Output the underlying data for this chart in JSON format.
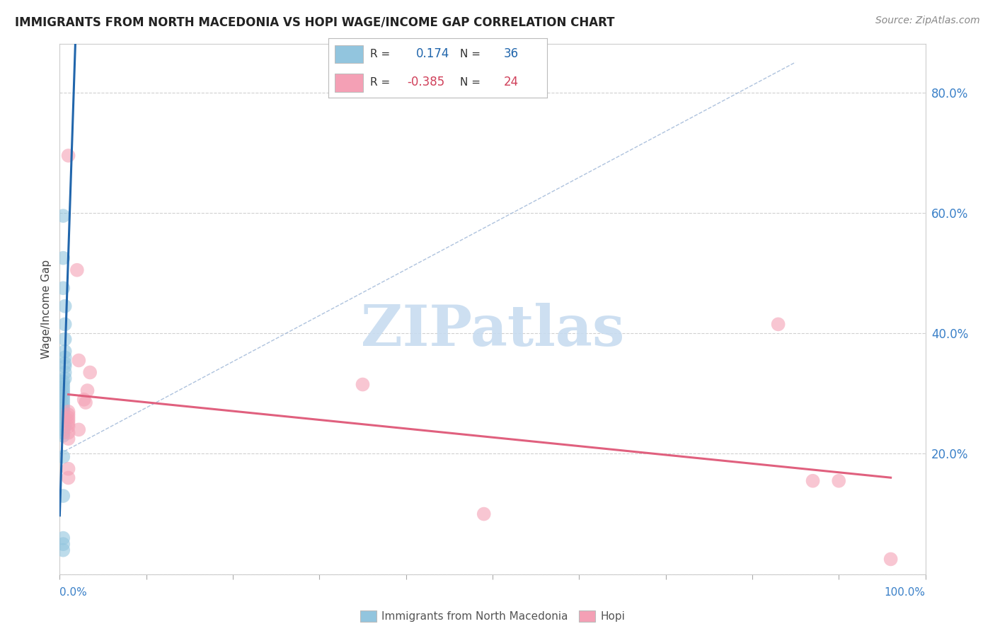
{
  "title": "IMMIGRANTS FROM NORTH MACEDONIA VS HOPI WAGE/INCOME GAP CORRELATION CHART",
  "source": "Source: ZipAtlas.com",
  "ylabel": "Wage/Income Gap",
  "xlim": [
    0.0,
    1.0
  ],
  "ylim": [
    0.0,
    0.88
  ],
  "ytick_positions": [
    0.0,
    0.2,
    0.4,
    0.6,
    0.8
  ],
  "ytick_labels": [
    "",
    "20.0%",
    "40.0%",
    "60.0%",
    "80.0%"
  ],
  "xtick_positions": [
    0.0,
    0.1,
    0.2,
    0.3,
    0.4,
    0.5,
    0.6,
    0.7,
    0.8,
    0.9,
    1.0
  ],
  "blue_R": 0.174,
  "blue_N": 36,
  "pink_R": -0.385,
  "pink_N": 24,
  "blue_color": "#92c5de",
  "pink_color": "#f4a0b5",
  "blue_line_color": "#2166ac",
  "pink_line_color": "#e0607e",
  "blue_scatter": [
    [
      0.004,
      0.595
    ],
    [
      0.004,
      0.525
    ],
    [
      0.004,
      0.475
    ],
    [
      0.006,
      0.445
    ],
    [
      0.006,
      0.415
    ],
    [
      0.006,
      0.39
    ],
    [
      0.006,
      0.37
    ],
    [
      0.006,
      0.36
    ],
    [
      0.006,
      0.35
    ],
    [
      0.006,
      0.345
    ],
    [
      0.006,
      0.335
    ],
    [
      0.006,
      0.325
    ],
    [
      0.004,
      0.32
    ],
    [
      0.004,
      0.315
    ],
    [
      0.004,
      0.31
    ],
    [
      0.004,
      0.305
    ],
    [
      0.004,
      0.3
    ],
    [
      0.004,
      0.295
    ],
    [
      0.004,
      0.29
    ],
    [
      0.004,
      0.285
    ],
    [
      0.004,
      0.28
    ],
    [
      0.004,
      0.275
    ],
    [
      0.004,
      0.27
    ],
    [
      0.004,
      0.265
    ],
    [
      0.004,
      0.26
    ],
    [
      0.004,
      0.255
    ],
    [
      0.004,
      0.25
    ],
    [
      0.006,
      0.245
    ],
    [
      0.004,
      0.24
    ],
    [
      0.004,
      0.235
    ],
    [
      0.004,
      0.23
    ],
    [
      0.004,
      0.195
    ],
    [
      0.004,
      0.13
    ],
    [
      0.004,
      0.06
    ],
    [
      0.004,
      0.05
    ],
    [
      0.004,
      0.04
    ]
  ],
  "pink_scatter": [
    [
      0.01,
      0.695
    ],
    [
      0.02,
      0.505
    ],
    [
      0.022,
      0.355
    ],
    [
      0.035,
      0.335
    ],
    [
      0.032,
      0.305
    ],
    [
      0.028,
      0.29
    ],
    [
      0.03,
      0.285
    ],
    [
      0.01,
      0.27
    ],
    [
      0.01,
      0.265
    ],
    [
      0.01,
      0.26
    ],
    [
      0.01,
      0.255
    ],
    [
      0.01,
      0.25
    ],
    [
      0.01,
      0.245
    ],
    [
      0.022,
      0.24
    ],
    [
      0.01,
      0.235
    ],
    [
      0.01,
      0.225
    ],
    [
      0.01,
      0.175
    ],
    [
      0.01,
      0.16
    ],
    [
      0.35,
      0.315
    ],
    [
      0.49,
      0.1
    ],
    [
      0.83,
      0.415
    ],
    [
      0.87,
      0.155
    ],
    [
      0.9,
      0.155
    ],
    [
      0.96,
      0.025
    ]
  ],
  "watermark_text": "ZIPatlas",
  "watermark_color": "#c8dcf0",
  "background_color": "#ffffff",
  "grid_color": "#d0d0d0",
  "legend_text_color": "#333333",
  "blue_val_color": "#2166ac",
  "pink_val_color": "#d0405a",
  "axis_label_color": "#3a80c8",
  "source_color": "#888888",
  "title_color": "#222222"
}
